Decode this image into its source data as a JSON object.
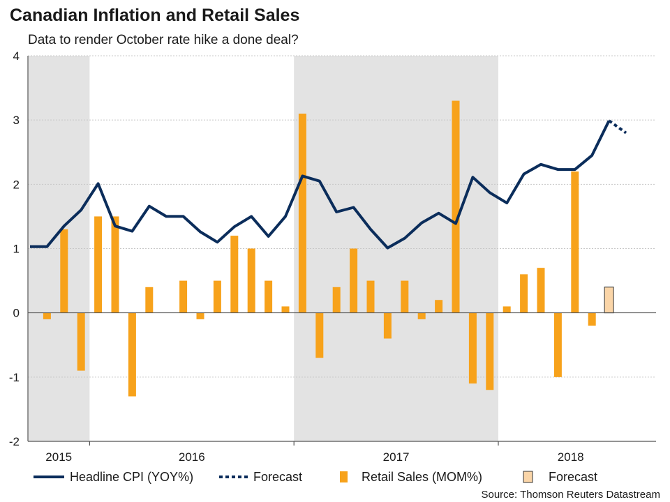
{
  "chart_data": {
    "type": "bar+line",
    "title": "Canadian Inflation and Retail Sales",
    "subtitle": "Data to render October rate hike a done deal?",
    "ylim": [
      -2,
      4
    ],
    "yticks": [
      "4",
      "3",
      "2",
      "1",
      "0",
      "-1",
      "-2"
    ],
    "year_labels": [
      "2015",
      "2016",
      "2017",
      "2018"
    ],
    "shaded_periods": [
      "2015",
      "2017"
    ],
    "grid": true,
    "colors": {
      "cpi_line": "#0b2d5b",
      "retail_bar": "#f7a21b",
      "forecast_bar_fill": "#fad5a8",
      "shade": "#e3e3e3",
      "grid": "#c8c8c8",
      "axis": "#555555"
    },
    "retail_sales": {
      "name": "Retail Sales (MOM%)",
      "values": [
        null,
        -0.1,
        1.3,
        -0.9,
        1.5,
        1.5,
        -1.3,
        0.4,
        null,
        0.5,
        -0.1,
        0.5,
        1.2,
        1.0,
        0.5,
        0.1,
        3.1,
        -0.7,
        0.4,
        1.0,
        0.5,
        -0.4,
        0.5,
        -0.1,
        0.2,
        3.3,
        -1.1,
        -1.2,
        0.1,
        0.6,
        0.7,
        -1.0,
        2.2,
        -0.2
      ],
      "forecast_name": "Forecast",
      "forecast_value": 0.4
    },
    "headline_cpi": {
      "name": "Headline CPI (YOY%)",
      "values": [
        1.03,
        1.03,
        1.35,
        1.6,
        2.01,
        1.35,
        1.27,
        1.66,
        1.5,
        1.5,
        1.26,
        1.1,
        1.34,
        1.5,
        1.19,
        1.5,
        2.13,
        2.05,
        1.57,
        1.64,
        1.3,
        1.01,
        1.16,
        1.4,
        1.55,
        1.39,
        2.11,
        1.87,
        1.71,
        2.16,
        2.31,
        2.23,
        2.23,
        2.45,
        2.99
      ],
      "forecast_name": "Forecast",
      "forecast_values": [
        2.99,
        2.8
      ]
    },
    "source": "Source: Thomson Reuters Datastream"
  }
}
